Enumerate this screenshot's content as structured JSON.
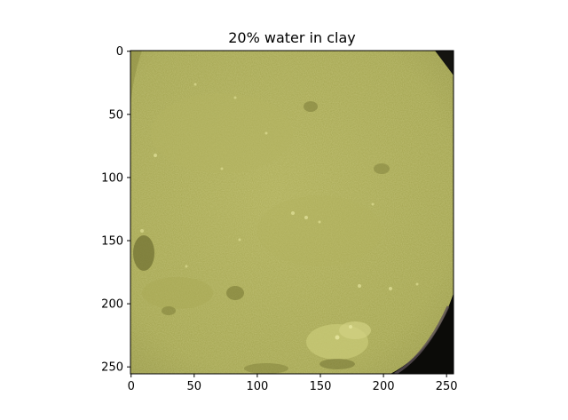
{
  "figure": {
    "title": "20% water in clay"
  },
  "image": {
    "description_colors": {
      "base": "#a6a650",
      "light": "#c3c471",
      "dark": "#7f7f3a",
      "shadow": "#000000"
    }
  },
  "axes": {
    "x_ticks": [
      "0",
      "50",
      "100",
      "150",
      "200",
      "250"
    ],
    "y_ticks": [
      "0",
      "50",
      "100",
      "150",
      "200",
      "250"
    ],
    "x_range": [
      0,
      256
    ],
    "y_range": [
      0,
      256
    ]
  }
}
